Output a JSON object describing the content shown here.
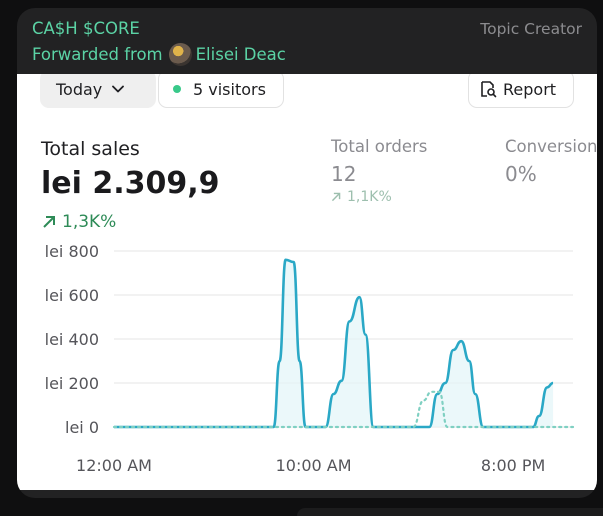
{
  "message": {
    "channel_name": "CA$H $CORE",
    "role": "Topic Creator",
    "forwarded_prefix": "Forwarded from",
    "forwarded_from": "Elisei Deac"
  },
  "toolbar": {
    "date_filter": "Today",
    "visitors": "5 visitors",
    "report": "Report"
  },
  "metrics": {
    "total_sales": {
      "label": "Total sales",
      "value": "lei 2.309,9",
      "trend": "1,3K%"
    },
    "total_orders": {
      "label": "Total orders",
      "value": "12",
      "trend": "1,1K%"
    },
    "conversion": {
      "label": "Conversion",
      "value": "0%"
    }
  },
  "colors": {
    "accent_green": "#5bd3a5",
    "trend_green": "#2e8b57",
    "series_line": "#2aa8c6",
    "comparison_line": "#7fd0c2"
  },
  "chart_data": {
    "type": "line",
    "y_tick_labels": [
      "lei 800",
      "lei 600",
      "lei 400",
      "lei 200",
      "lei 0"
    ],
    "y_ticks": [
      800,
      600,
      400,
      200,
      0
    ],
    "ylim": [
      0,
      800
    ],
    "x_tick_labels": [
      "12:00 AM",
      "10:00 AM",
      "8:00 PM"
    ],
    "x_ticks": [
      0,
      10,
      20
    ],
    "xlim": [
      0,
      23
    ],
    "grid": true,
    "series": [
      {
        "x": [
          0,
          8,
          8.3,
          8.6,
          9,
          9.3,
          9.6,
          10,
          10.6,
          11,
          11.4,
          11.8,
          12.3,
          12.6,
          13,
          13.5,
          14,
          14.6,
          15,
          15.4,
          15.8,
          16.2,
          16.6,
          17,
          17.4,
          17.8,
          18.1,
          18.5,
          19,
          19.5,
          20,
          20.5,
          21,
          21.3,
          21.7,
          22
        ],
        "y": [
          0,
          0,
          300,
          760,
          750,
          300,
          0,
          0,
          0,
          150,
          210,
          480,
          590,
          420,
          0,
          0,
          0,
          0,
          0,
          0,
          0,
          150,
          200,
          350,
          390,
          300,
          150,
          0,
          0,
          0,
          0,
          0,
          0,
          50,
          180,
          200
        ]
      },
      {
        "dashed": true,
        "x": [
          0,
          15,
          15.5,
          15.9,
          16.3,
          16.7,
          23
        ],
        "y": [
          0,
          0,
          120,
          160,
          160,
          0,
          0
        ]
      }
    ]
  }
}
